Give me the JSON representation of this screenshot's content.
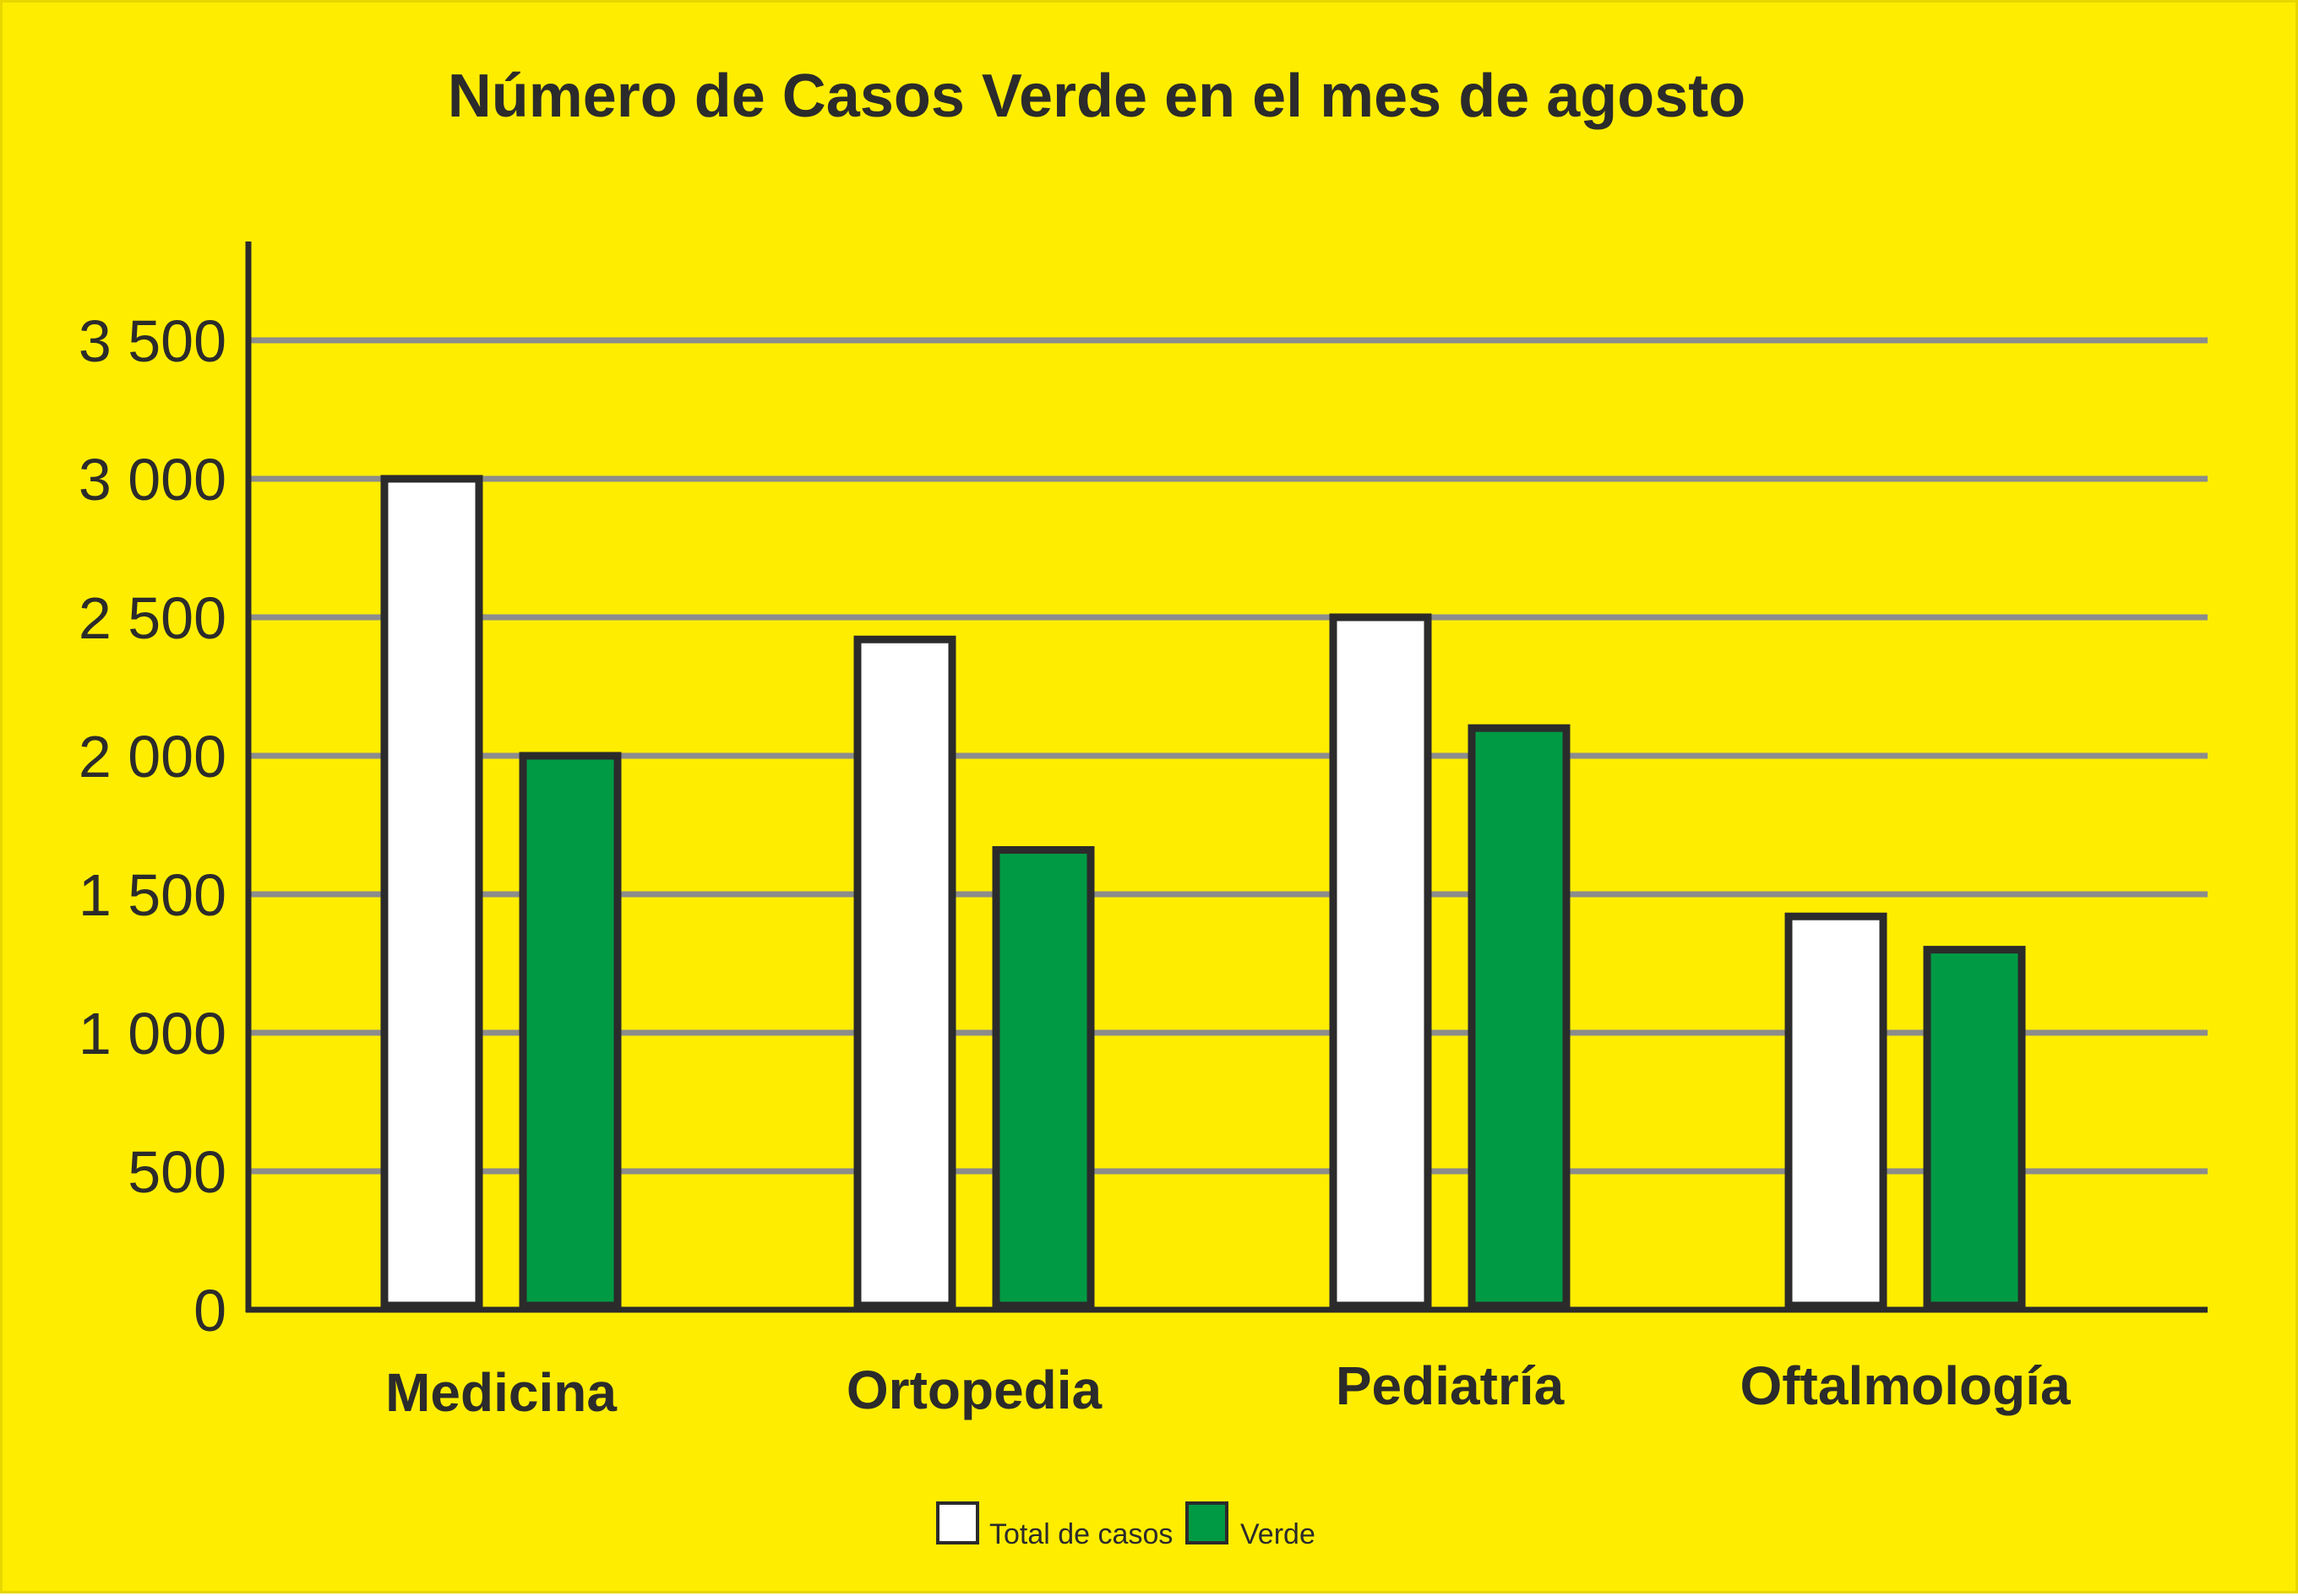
{
  "chart_data": {
    "type": "bar",
    "title": "Número de Casos Verde en el mes de agosto",
    "xlabel": "",
    "ylabel": "",
    "categories": [
      "Medicina",
      "Ortopedia",
      "Pediatría",
      "Oftalmología"
    ],
    "series": [
      {
        "name": "Total de casos",
        "values": [
          3000,
          2420,
          2500,
          1420
        ],
        "color": "#ffffff"
      },
      {
        "name": "Verde",
        "values": [
          2000,
          1660,
          2100,
          1300
        ],
        "color": "#009A44"
      }
    ],
    "ylim": [
      0,
      3500
    ],
    "y_ticks": [
      0,
      500,
      1000,
      1500,
      2000,
      2500,
      3000,
      3500
    ],
    "y_tick_labels": [
      "0",
      "500",
      "1 000",
      "1 500",
      "2 000",
      "2 500",
      "3 000",
      "3 500"
    ],
    "grid": true,
    "legend_position": "bottom-center",
    "colors": {
      "background": "#FFED00",
      "gridline": "#8C8C8C",
      "axis": "#2b2b2b",
      "bar_outline": "#2b2b2b"
    }
  }
}
